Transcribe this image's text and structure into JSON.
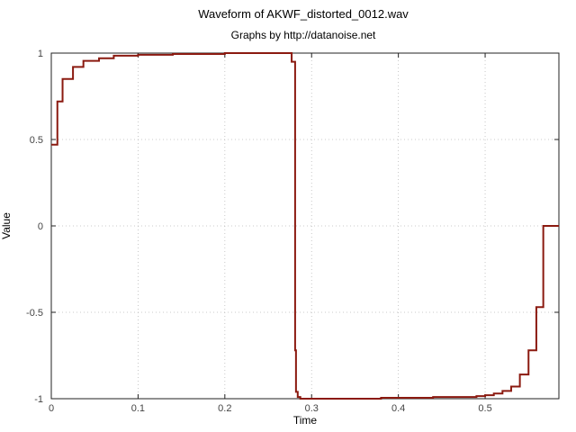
{
  "chart_data": {
    "type": "line",
    "title": "Waveform of AKWF_distorted_0012.wav",
    "subtitle": "Graphs by http://datanoise.net",
    "xlabel": "Time",
    "ylabel": "Value",
    "xlim": [
      0,
      0.585
    ],
    "ylim": [
      -1,
      1
    ],
    "xticks": [
      0,
      0.1,
      0.2,
      0.3,
      0.4,
      0.5
    ],
    "xtick_labels": [
      "0",
      "0.1",
      "0.2",
      "0.3",
      "0.4",
      "0.5"
    ],
    "yticks": [
      1,
      0.5,
      0,
      -0.5,
      -1
    ],
    "ytick_labels": [
      "1",
      "0.5",
      "0",
      "-0.5",
      "-1"
    ],
    "grid": true,
    "line_color": "#8b1a10",
    "series": [
      {
        "step": true,
        "x": [
          0,
          0.007,
          0.013,
          0.025,
          0.037,
          0.055,
          0.072,
          0.1,
          0.14,
          0.2,
          0.27,
          0.277,
          0.281,
          0.282,
          0.284,
          0.287,
          0.29,
          0.3,
          0.38,
          0.44,
          0.49,
          0.5,
          0.51,
          0.52,
          0.53,
          0.54,
          0.55,
          0.559,
          0.567,
          0.574,
          0.58,
          0.585
        ],
        "y": [
          0.47,
          0.72,
          0.85,
          0.92,
          0.955,
          0.97,
          0.985,
          0.99,
          0.995,
          1.0,
          1.0,
          0.95,
          -0.72,
          -0.96,
          -0.99,
          -1.0,
          -1.0,
          -1.0,
          -0.995,
          -0.99,
          -0.985,
          -0.98,
          -0.97,
          -0.955,
          -0.93,
          -0.86,
          -0.72,
          -0.47,
          0.0,
          0.0,
          0.0,
          0.0
        ]
      }
    ]
  }
}
